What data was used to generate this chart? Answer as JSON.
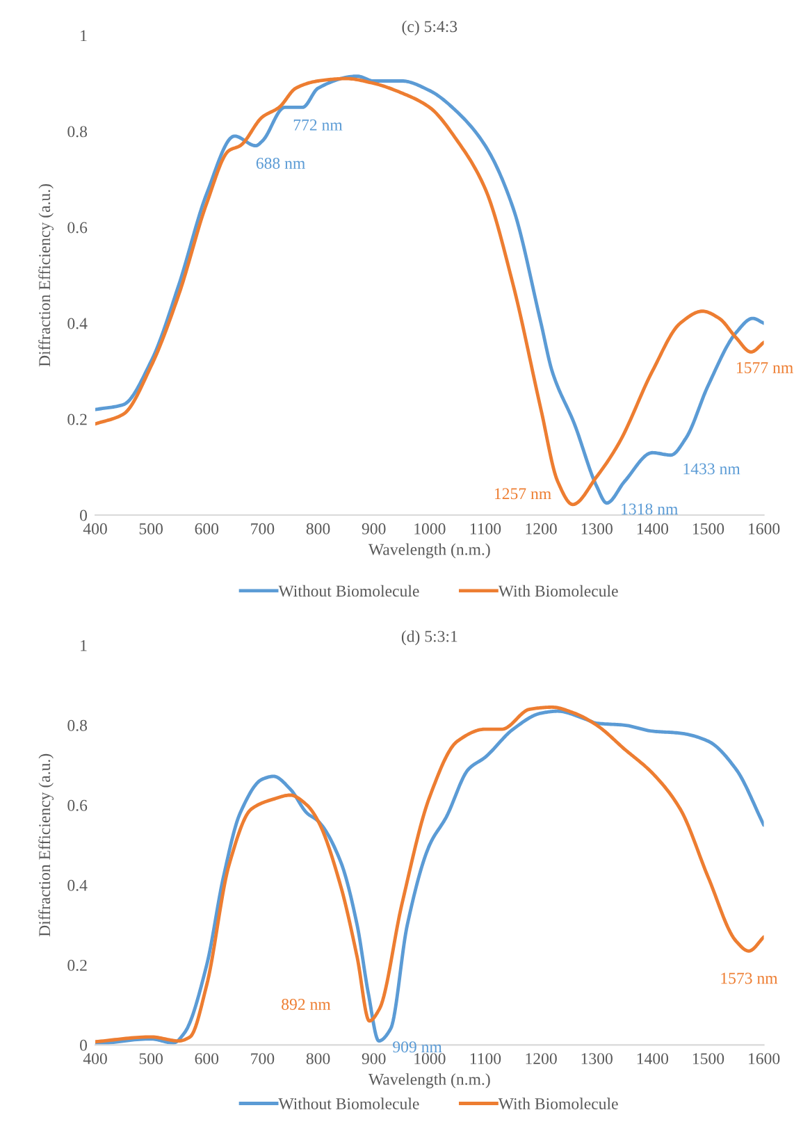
{
  "chart_data": [
    {
      "type": "line",
      "title": "(c) 5:4:3",
      "xlabel": "Wavelength (n.m.)",
      "ylabel": "Diffraction Efficiency (a.u.)",
      "xlim": [
        400,
        1600
      ],
      "xticks": [
        400,
        500,
        600,
        700,
        800,
        900,
        1000,
        1100,
        1200,
        1300,
        1400,
        1500,
        1600
      ],
      "ylim": [
        0,
        1
      ],
      "yticks": [
        0,
        0.2,
        0.4,
        0.6,
        0.8,
        1
      ],
      "grid": false,
      "legend": "bottom",
      "marker": "none",
      "line_style": "solid",
      "series": [
        {
          "name": "Without Biomolecule",
          "color": "#5b9bd5",
          "x": [
            400,
            450,
            500,
            550,
            600,
            650,
            688,
            700,
            740,
            772,
            800,
            870,
            900,
            950,
            1000,
            1050,
            1100,
            1150,
            1200,
            1220,
            1260,
            1300,
            1318,
            1350,
            1400,
            1433,
            1460,
            1500,
            1550,
            1580,
            1600
          ],
          "values": [
            0.22,
            0.23,
            0.32,
            0.48,
            0.67,
            0.79,
            0.77,
            0.78,
            0.85,
            0.85,
            0.89,
            0.915,
            0.905,
            0.905,
            0.885,
            0.84,
            0.77,
            0.64,
            0.4,
            0.3,
            0.19,
            0.06,
            0.025,
            0.07,
            0.13,
            0.125,
            0.16,
            0.27,
            0.38,
            0.41,
            0.4
          ]
        },
        {
          "name": "With Biomolecule",
          "color": "#ed7d31",
          "x": [
            400,
            450,
            500,
            550,
            600,
            640,
            660,
            700,
            730,
            760,
            800,
            850,
            900,
            950,
            1000,
            1050,
            1100,
            1150,
            1200,
            1230,
            1257,
            1300,
            1340,
            1400,
            1450,
            1490,
            1520,
            1550,
            1577,
            1600
          ],
          "values": [
            0.19,
            0.21,
            0.31,
            0.46,
            0.65,
            0.76,
            0.77,
            0.83,
            0.85,
            0.89,
            0.905,
            0.91,
            0.9,
            0.88,
            0.85,
            0.78,
            0.68,
            0.48,
            0.22,
            0.07,
            0.022,
            0.08,
            0.15,
            0.3,
            0.4,
            0.425,
            0.41,
            0.37,
            0.34,
            0.36
          ]
        }
      ],
      "annotations": [
        {
          "text": "688 nm",
          "x": 688,
          "y": 0.77
        },
        {
          "text": "772 nm",
          "x": 772,
          "y": 0.85
        },
        {
          "text": "1257 nm",
          "x": 1257,
          "y": 0.022
        },
        {
          "text": "1318 nm",
          "x": 1318,
          "y": 0.025
        },
        {
          "text": "1433 nm",
          "x": 1433,
          "y": 0.125
        },
        {
          "text": "1577 nm",
          "x": 1577,
          "y": 0.34
        }
      ]
    },
    {
      "type": "line",
      "title": "(d) 5:3:1",
      "xlabel": "Wavelength (n.m.)",
      "ylabel": "Diffraction Efficiency (a.u.)",
      "xlim": [
        400,
        1600
      ],
      "xticks": [
        400,
        500,
        600,
        700,
        800,
        900,
        1000,
        1100,
        1200,
        1300,
        1400,
        1500,
        1600
      ],
      "ylim": [
        0,
        1
      ],
      "yticks": [
        0,
        0.2,
        0.4,
        0.6,
        0.8,
        1
      ],
      "grid": false,
      "legend": "bottom",
      "marker": "none",
      "line_style": "solid",
      "series": [
        {
          "name": "Without Biomolecule",
          "color": "#5b9bd5",
          "x": [
            400,
            500,
            540,
            560,
            600,
            630,
            660,
            700,
            720,
            750,
            780,
            800,
            840,
            870,
            890,
            909,
            930,
            960,
            1000,
            1030,
            1070,
            1100,
            1150,
            1200,
            1230,
            1280,
            1300,
            1350,
            1400,
            1450,
            1500,
            1550,
            1600
          ],
          "values": [
            0.001,
            0.015,
            0.005,
            0.03,
            0.2,
            0.42,
            0.58,
            0.665,
            0.672,
            0.64,
            0.58,
            0.56,
            0.46,
            0.3,
            0.13,
            0.01,
            0.04,
            0.3,
            0.5,
            0.57,
            0.69,
            0.72,
            0.79,
            0.83,
            0.835,
            0.815,
            0.805,
            0.8,
            0.785,
            0.78,
            0.76,
            0.69,
            0.55
          ]
        },
        {
          "name": "With Biomolecule",
          "color": "#ed7d31",
          "x": [
            400,
            500,
            550,
            570,
            600,
            640,
            680,
            720,
            750,
            780,
            800,
            840,
            870,
            892,
            910,
            950,
            1000,
            1050,
            1100,
            1130,
            1180,
            1220,
            1260,
            1300,
            1350,
            1400,
            1450,
            1500,
            1550,
            1573,
            1600
          ],
          "values": [
            0.008,
            0.02,
            0.01,
            0.02,
            0.15,
            0.45,
            0.59,
            0.615,
            0.625,
            0.6,
            0.56,
            0.4,
            0.22,
            0.06,
            0.09,
            0.35,
            0.62,
            0.76,
            0.79,
            0.79,
            0.84,
            0.845,
            0.83,
            0.8,
            0.74,
            0.68,
            0.59,
            0.42,
            0.26,
            0.235,
            0.27
          ]
        }
      ],
      "annotations": [
        {
          "text": "892 nm",
          "x": 892,
          "y": 0.06
        },
        {
          "text": "909 nm",
          "x": 909,
          "y": 0.01
        },
        {
          "text": "1573 nm",
          "x": 1573,
          "y": 0.235
        }
      ]
    }
  ]
}
